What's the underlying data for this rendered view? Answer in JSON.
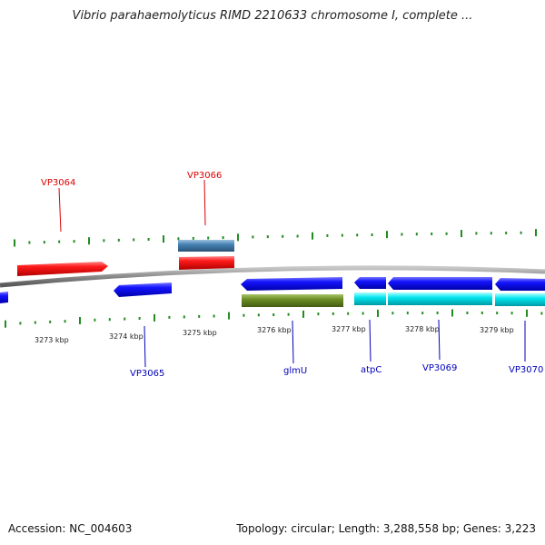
{
  "title": "Vibrio parahaemolyticus RIMD 2210633 chromosome I, complete ...",
  "footer": {
    "accession": "Accession: NC_004603",
    "summary": "Topology: circular; Length: 3,288,558 bp; Genes: 3,223"
  },
  "colors": {
    "forward_gene": "#ee1111",
    "forward_gene_other": "#4682b4",
    "reverse_gene": "#1111ee",
    "reverse_cds": "#00e5ee",
    "reverse_rna": "#6b8e23",
    "tick": "#228b22",
    "backbone": "#888888",
    "label_forward": "#dd0000",
    "label_reverse": "#0000bb"
  },
  "scale": {
    "ticks": [
      "3273 kbp",
      "3274 kbp",
      "3275 kbp",
      "3276 kbp",
      "3277 kbp",
      "3278 kbp",
      "3279 kbp"
    ]
  },
  "genes": {
    "forward_labels": [
      "VP3064",
      "VP3066"
    ],
    "reverse_labels": [
      "VP3065",
      "glmU",
      "atpC",
      "VP3069",
      "VP3070"
    ]
  }
}
